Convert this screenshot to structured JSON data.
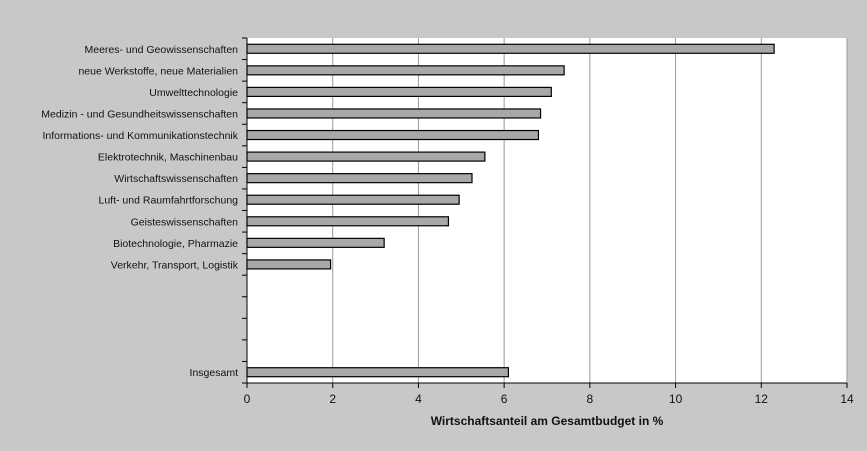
{
  "chart_data": {
    "type": "bar",
    "orientation": "horizontal",
    "categories": [
      "Meeres- und Geowissenschaften",
      "neue Werkstoffe, neue Materialien",
      "Umwelttechnologie",
      "Medizin - und Gesundheitswissenschaften",
      "Informations- und Kommunikationstechnik",
      "Elektrotechnik, Maschinenbau",
      "Wirtschaftswissenschaften",
      "Luft- und Raumfahrtforschung",
      "Geisteswissenschaften",
      "Biotechnologie, Pharmazie",
      "Verkehr, Transport, Logistik",
      "",
      "",
      "",
      "",
      "Insgesamt"
    ],
    "values": [
      12.3,
      7.4,
      7.1,
      6.85,
      6.8,
      5.55,
      5.25,
      4.95,
      4.7,
      3.2,
      1.95,
      null,
      null,
      null,
      null,
      6.1
    ],
    "xlabel": "Wirtschaftsanteil am Gesamtbudget in %",
    "xlim": [
      0,
      14
    ],
    "xticks": [
      0,
      2,
      4,
      6,
      8,
      10,
      12,
      14
    ],
    "grid": "vertical",
    "legend": "none",
    "colors": {
      "background": "#c8c8c8",
      "plot_area": "#ffffff",
      "bar_fill": "#a8a8a8",
      "bar_stroke": "#000000",
      "grid": "#9a9a9a"
    }
  }
}
